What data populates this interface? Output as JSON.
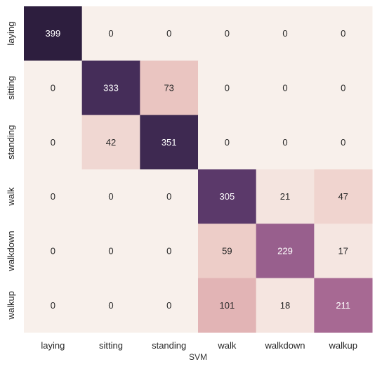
{
  "chart_data": {
    "type": "heatmap",
    "title": "",
    "xlabel": "SVM",
    "ylabel": "",
    "x_categories": [
      "laying",
      "sitting",
      "standing",
      "walk",
      "walkdown",
      "walkup"
    ],
    "y_categories": [
      "laying",
      "sitting",
      "standing",
      "walk",
      "walkdown",
      "walkup"
    ],
    "values": [
      [
        399,
        0,
        0,
        0,
        0,
        0
      ],
      [
        0,
        333,
        73,
        0,
        0,
        0
      ],
      [
        0,
        42,
        351,
        0,
        0,
        0
      ],
      [
        0,
        0,
        0,
        305,
        21,
        47
      ],
      [
        0,
        0,
        0,
        59,
        229,
        17
      ],
      [
        0,
        0,
        0,
        101,
        18,
        211
      ]
    ],
    "value_range": [
      0,
      399
    ],
    "colormap": [
      "#f8f0eb",
      "#ecc9c4",
      "#d8a0a8",
      "#b06f96",
      "#7a4a82",
      "#452d59",
      "#2d1e3e"
    ],
    "colorbar": false,
    "grid": false,
    "legend": "none"
  }
}
